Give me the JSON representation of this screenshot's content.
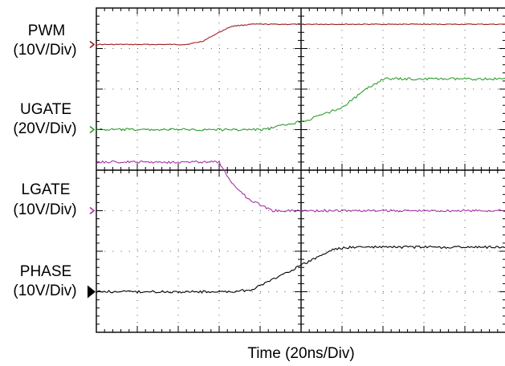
{
  "chart_data": {
    "type": "line",
    "title": "",
    "xlabel": "Time (20ns/Div)",
    "ylabel": "",
    "x_unit": "div",
    "y_unit": "div",
    "xlim": [
      0,
      10
    ],
    "ylim": [
      0,
      8
    ],
    "grid": "dotted, 10 x 8 divisions",
    "series": [
      {
        "name": "PWM",
        "scale": "(10V/Div)",
        "color": "#a11c1c",
        "marker_level": 7.1,
        "marker": "chevron",
        "x": [
          0,
          1.2,
          2.2,
          2.6,
          2.9,
          3.3,
          3.8,
          10
        ],
        "y": [
          7.1,
          7.1,
          7.1,
          7.18,
          7.35,
          7.55,
          7.6,
          7.6
        ]
      },
      {
        "name": "UGATE",
        "scale": "(20V/Div)",
        "color": "#2f9e2f",
        "marker_level": 5.0,
        "marker": "chevron",
        "x": [
          0,
          3.3,
          4.1,
          5.2,
          6.0,
          6.6,
          7.0,
          10
        ],
        "y": [
          5.0,
          5.0,
          5.0,
          5.25,
          5.55,
          6.0,
          6.25,
          6.25
        ]
      },
      {
        "name": "LGATE",
        "scale": "(10V/Div)",
        "color": "#a534a5",
        "marker_level": 3.0,
        "marker": "chevron",
        "x": [
          0,
          3.0,
          3.1,
          3.3,
          3.7,
          4.3,
          5.0,
          10
        ],
        "y": [
          4.2,
          4.2,
          4.0,
          3.7,
          3.3,
          3.0,
          3.0,
          3.0
        ]
      },
      {
        "name": "PHASE",
        "scale": "(10V/Div)",
        "color": "#000000",
        "marker_level": 1.0,
        "marker": "arrow",
        "x": [
          0,
          3.3,
          3.8,
          4.6,
          5.2,
          5.8,
          6.2,
          10
        ],
        "y": [
          1.0,
          1.0,
          1.05,
          1.45,
          1.75,
          2.05,
          2.1,
          2.1
        ]
      }
    ]
  }
}
